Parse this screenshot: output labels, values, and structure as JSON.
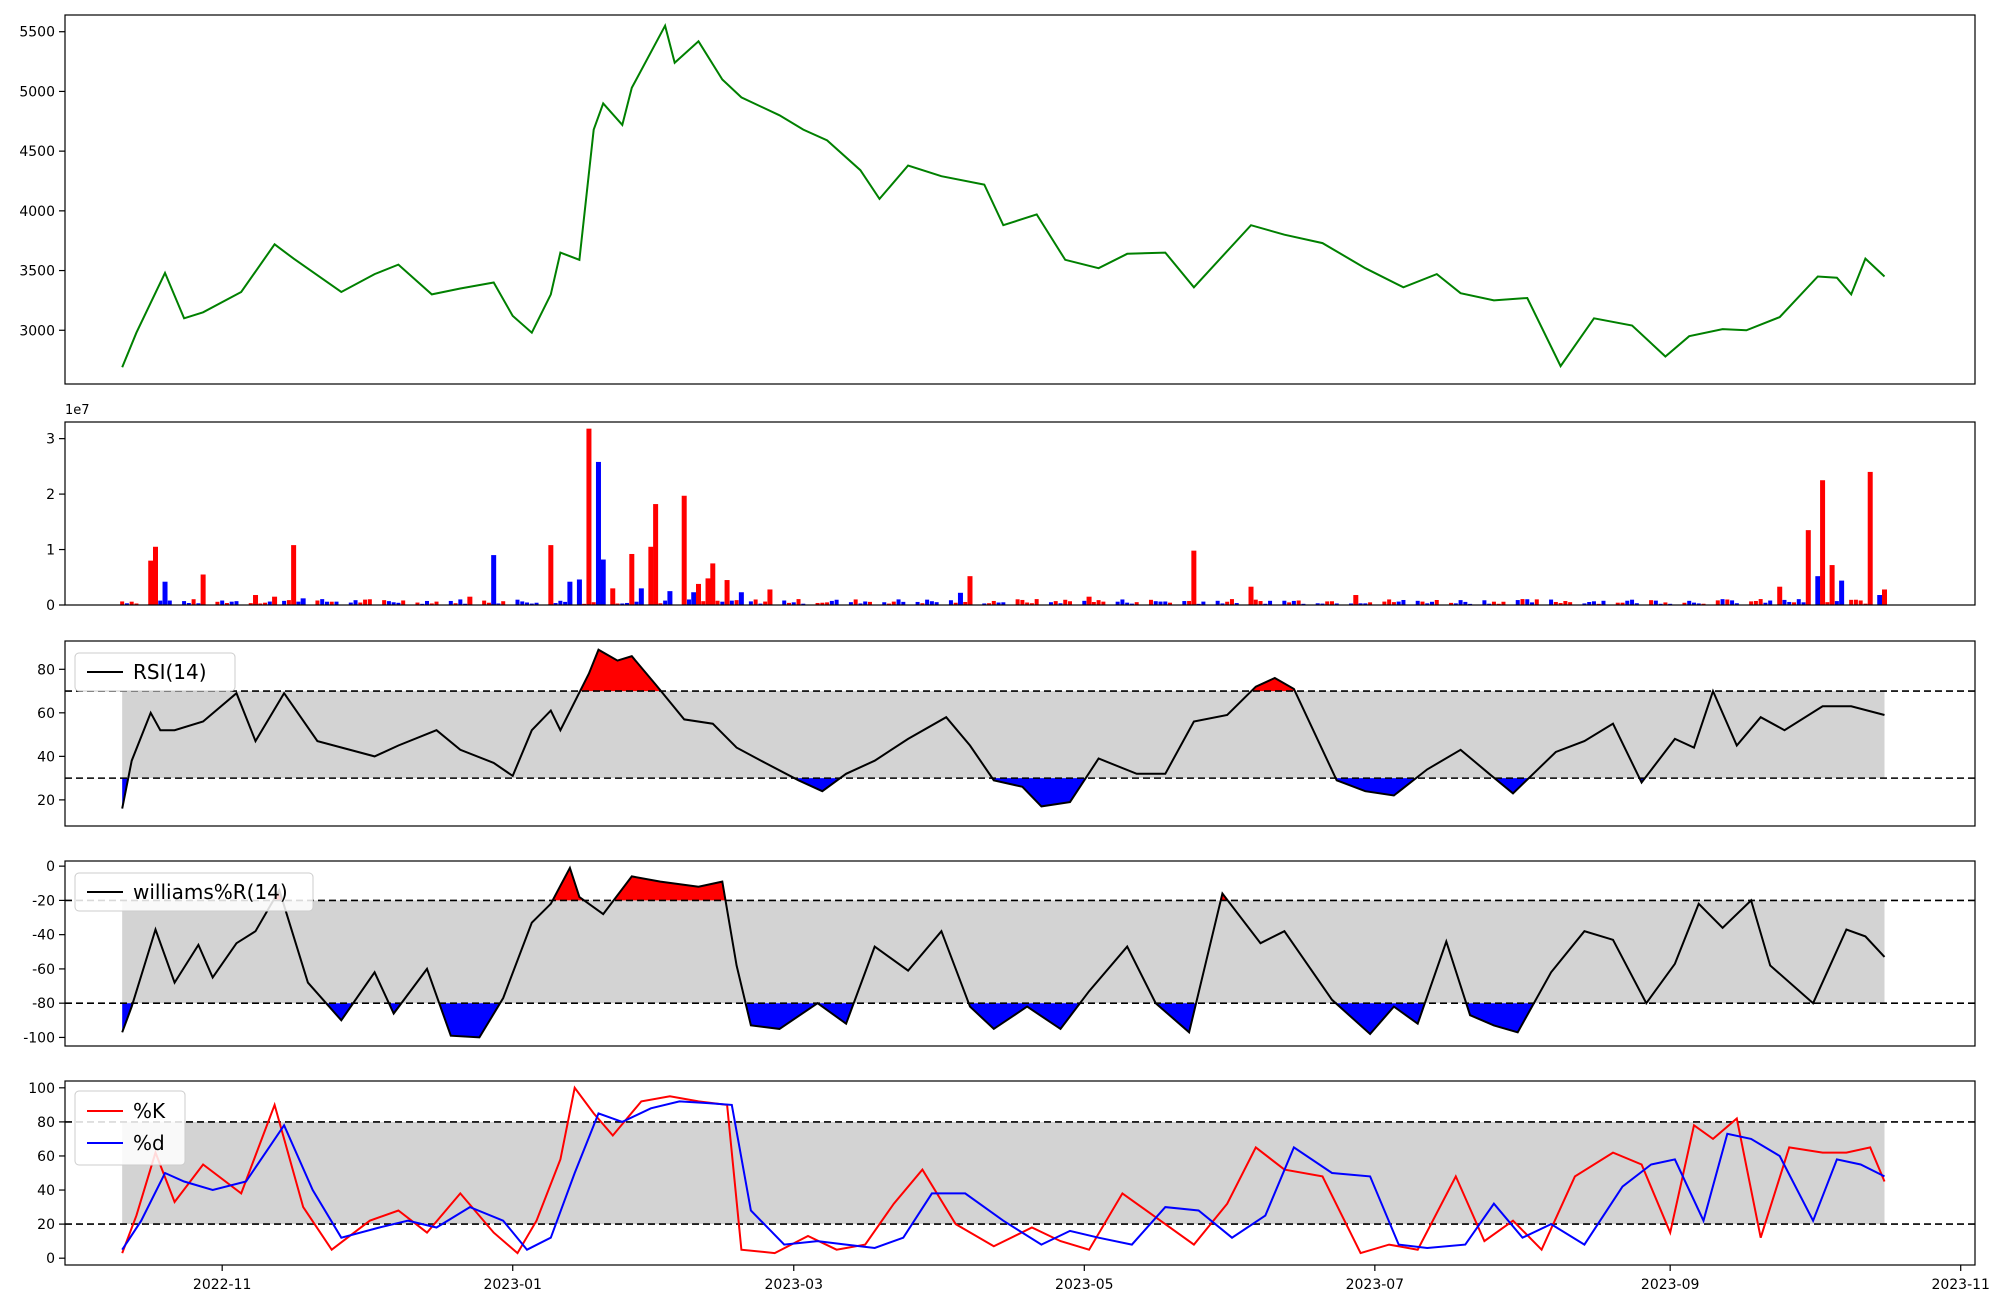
{
  "chart_data": [
    {
      "id": "price",
      "type": "line",
      "color": "#008000",
      "ylim": [
        2550,
        5640
      ],
      "yticks": [
        3000,
        3500,
        4000,
        4500,
        5000,
        5500
      ],
      "x": [
        "2022-10-11",
        "2022-10-14",
        "2022-10-20",
        "2022-10-24",
        "2022-10-28",
        "2022-11-05",
        "2022-11-12",
        "2022-11-16",
        "2022-11-26",
        "2022-12-03",
        "2022-12-08",
        "2022-12-15",
        "2022-12-21",
        "2022-12-28",
        "2023-01-01",
        "2023-01-05",
        "2023-01-09",
        "2023-01-11",
        "2023-01-15",
        "2023-01-18",
        "2023-01-20",
        "2023-01-24",
        "2023-01-26",
        "2023-02-02",
        "2023-02-04",
        "2023-02-09",
        "2023-02-14",
        "2023-02-18",
        "2023-02-26",
        "2023-03-03",
        "2023-03-08",
        "2023-03-15",
        "2023-03-19",
        "2023-03-25",
        "2023-04-01",
        "2023-04-10",
        "2023-04-14",
        "2023-04-21",
        "2023-04-27",
        "2023-05-04",
        "2023-05-10",
        "2023-05-18",
        "2023-05-24",
        "2023-06-05",
        "2023-06-12",
        "2023-06-20",
        "2023-06-29",
        "2023-07-07",
        "2023-07-14",
        "2023-07-19",
        "2023-07-26",
        "2023-08-02",
        "2023-08-09",
        "2023-08-16",
        "2023-08-24",
        "2023-08-31",
        "2023-09-05",
        "2023-09-12",
        "2023-09-17",
        "2023-09-24",
        "2023-10-02",
        "2023-10-06",
        "2023-10-09",
        "2023-10-12",
        "2023-10-16"
      ],
      "values": [
        2690,
        2980,
        3480,
        3100,
        3150,
        3320,
        3720,
        3600,
        3320,
        3470,
        3550,
        3300,
        3350,
        3400,
        3120,
        2980,
        3300,
        3650,
        3590,
        4680,
        4900,
        4720,
        5030,
        5550,
        5240,
        5420,
        5100,
        4950,
        4800,
        4680,
        4590,
        4340,
        4100,
        4380,
        4290,
        4220,
        3880,
        3970,
        3590,
        3520,
        3640,
        3650,
        3360,
        3880,
        3800,
        3730,
        3520,
        3360,
        3470,
        3310,
        3250,
        3270,
        2700,
        3100,
        3040,
        2780,
        2950,
        3010,
        3000,
        3110,
        3450,
        3440,
        3300,
        3600,
        3450
      ]
    },
    {
      "id": "volume",
      "type": "bar",
      "exponent_label": "1e7",
      "ylim": [
        0,
        33000000
      ],
      "yticks": [
        0,
        10000000,
        20000000,
        30000000
      ],
      "ytick_labels": [
        "0",
        "1",
        "2",
        "3"
      ],
      "colors": {
        "up": "#ff0000",
        "down": "#0000ff"
      },
      "bars": [
        {
          "x": "2022-10-17",
          "value": 8000000,
          "dir": "up"
        },
        {
          "x": "2022-10-18",
          "value": 10500000,
          "dir": "up"
        },
        {
          "x": "2022-10-20",
          "value": 4200000,
          "dir": "down"
        },
        {
          "x": "2022-10-28",
          "value": 5500000,
          "dir": "up"
        },
        {
          "x": "2022-11-08",
          "value": 1800000,
          "dir": "up"
        },
        {
          "x": "2022-11-12",
          "value": 1500000,
          "dir": "up"
        },
        {
          "x": "2022-11-16",
          "value": 10800000,
          "dir": "up"
        },
        {
          "x": "2022-11-18",
          "value": 1200000,
          "dir": "down"
        },
        {
          "x": "2022-12-23",
          "value": 1500000,
          "dir": "up"
        },
        {
          "x": "2022-12-28",
          "value": 9000000,
          "dir": "down"
        },
        {
          "x": "2023-01-09",
          "value": 10800000,
          "dir": "up"
        },
        {
          "x": "2023-01-13",
          "value": 4200000,
          "dir": "down"
        },
        {
          "x": "2023-01-15",
          "value": 4600000,
          "dir": "down"
        },
        {
          "x": "2023-01-17",
          "value": 31800000,
          "dir": "up"
        },
        {
          "x": "2023-01-19",
          "value": 25800000,
          "dir": "down"
        },
        {
          "x": "2023-01-20",
          "value": 8200000,
          "dir": "down"
        },
        {
          "x": "2023-01-22",
          "value": 3000000,
          "dir": "up"
        },
        {
          "x": "2023-01-26",
          "value": 9200000,
          "dir": "up"
        },
        {
          "x": "2023-01-28",
          "value": 3000000,
          "dir": "down"
        },
        {
          "x": "2023-01-30",
          "value": 10500000,
          "dir": "up"
        },
        {
          "x": "2023-01-31",
          "value": 18200000,
          "dir": "up"
        },
        {
          "x": "2023-02-03",
          "value": 2500000,
          "dir": "down"
        },
        {
          "x": "2023-02-06",
          "value": 19700000,
          "dir": "up"
        },
        {
          "x": "2023-02-08",
          "value": 2300000,
          "dir": "down"
        },
        {
          "x": "2023-02-09",
          "value": 3800000,
          "dir": "up"
        },
        {
          "x": "2023-02-11",
          "value": 4800000,
          "dir": "up"
        },
        {
          "x": "2023-02-12",
          "value": 7500000,
          "dir": "up"
        },
        {
          "x": "2023-02-15",
          "value": 4500000,
          "dir": "up"
        },
        {
          "x": "2023-02-18",
          "value": 2300000,
          "dir": "down"
        },
        {
          "x": "2023-02-24",
          "value": 2800000,
          "dir": "up"
        },
        {
          "x": "2023-04-05",
          "value": 2200000,
          "dir": "down"
        },
        {
          "x": "2023-04-07",
          "value": 5200000,
          "dir": "up"
        },
        {
          "x": "2023-05-02",
          "value": 1500000,
          "dir": "up"
        },
        {
          "x": "2023-05-24",
          "value": 9800000,
          "dir": "up"
        },
        {
          "x": "2023-06-05",
          "value": 3300000,
          "dir": "up"
        },
        {
          "x": "2023-06-27",
          "value": 1800000,
          "dir": "up"
        },
        {
          "x": "2023-09-24",
          "value": 3300000,
          "dir": "up"
        },
        {
          "x": "2023-09-30",
          "value": 13500000,
          "dir": "up"
        },
        {
          "x": "2023-10-02",
          "value": 5200000,
          "dir": "down"
        },
        {
          "x": "2023-10-03",
          "value": 22500000,
          "dir": "up"
        },
        {
          "x": "2023-10-05",
          "value": 7200000,
          "dir": "up"
        },
        {
          "x": "2023-10-07",
          "value": 4400000,
          "dir": "down"
        },
        {
          "x": "2023-10-13",
          "value": 24000000,
          "dir": "up"
        },
        {
          "x": "2023-10-15",
          "value": 1800000,
          "dir": "down"
        },
        {
          "x": "2023-10-16",
          "value": 2800000,
          "dir": "up"
        }
      ]
    },
    {
      "id": "rsi",
      "type": "area",
      "legend": [
        "RSI(14)"
      ],
      "legend_position": "upper-left",
      "line_color": "#000000",
      "band": [
        30,
        70
      ],
      "band_color": "#d3d3d3",
      "over_color": "#ff0000",
      "under_color": "#0000ff",
      "ylim": [
        8,
        93
      ],
      "yticks": [
        20,
        40,
        60,
        80
      ],
      "x": [
        "2022-10-11",
        "2022-10-13",
        "2022-10-17",
        "2022-10-19",
        "2022-10-22",
        "2022-10-28",
        "2022-11-04",
        "2022-11-08",
        "2022-11-14",
        "2022-11-21",
        "2022-12-03",
        "2022-12-08",
        "2022-12-16",
        "2022-12-21",
        "2022-12-28",
        "2023-01-01",
        "2023-01-05",
        "2023-01-09",
        "2023-01-11",
        "2023-01-17",
        "2023-01-19",
        "2023-01-23",
        "2023-01-26",
        "2023-01-31",
        "2023-02-06",
        "2023-02-12",
        "2023-02-17",
        "2023-02-23",
        "2023-03-02",
        "2023-03-07",
        "2023-03-12",
        "2023-03-18",
        "2023-03-25",
        "2023-04-02",
        "2023-04-07",
        "2023-04-12",
        "2023-04-18",
        "2023-04-22",
        "2023-04-28",
        "2023-05-04",
        "2023-05-12",
        "2023-05-18",
        "2023-05-24",
        "2023-05-31",
        "2023-06-06",
        "2023-06-10",
        "2023-06-14",
        "2023-06-23",
        "2023-06-29",
        "2023-07-05",
        "2023-07-12",
        "2023-07-19",
        "2023-07-25",
        "2023-07-30",
        "2023-08-08",
        "2023-08-14",
        "2023-08-20",
        "2023-08-26",
        "2023-09-02",
        "2023-09-06",
        "2023-09-10",
        "2023-09-15",
        "2023-09-20",
        "2023-09-25",
        "2023-10-03",
        "2023-10-09",
        "2023-10-16"
      ],
      "values": [
        16,
        38,
        60,
        52,
        52,
        56,
        69,
        47,
        69,
        47,
        40,
        45,
        52,
        43,
        37,
        31,
        52,
        61,
        52,
        78,
        89,
        84,
        86,
        73,
        57,
        55,
        44,
        37,
        29,
        24,
        32,
        38,
        48,
        58,
        45,
        29,
        26,
        17,
        19,
        39,
        32,
        32,
        56,
        59,
        72,
        76,
        71,
        29,
        24,
        22,
        34,
        43,
        32,
        23,
        42,
        47,
        55,
        28,
        48,
        44,
        70,
        45,
        58,
        52,
        63,
        63,
        59
      ]
    },
    {
      "id": "williams",
      "type": "area",
      "legend": [
        "williams%R(14)"
      ],
      "legend_position": "upper-left",
      "line_color": "#000000",
      "band": [
        -80,
        -20
      ],
      "band_color": "#d3d3d3",
      "over_color": "#ff0000",
      "under_color": "#0000ff",
      "ylim": [
        -105,
        3
      ],
      "yticks": [
        -100,
        -80,
        -60,
        -40,
        -20,
        0
      ],
      "x": [
        "2022-10-11",
        "2022-10-13",
        "2022-10-18",
        "2022-10-22",
        "2022-10-27",
        "2022-10-30",
        "2022-11-04",
        "2022-11-08",
        "2022-11-13",
        "2022-11-19",
        "2022-11-26",
        "2022-12-03",
        "2022-12-07",
        "2022-12-14",
        "2022-12-19",
        "2022-12-25",
        "2022-12-30",
        "2023-01-05",
        "2023-01-09",
        "2023-01-13",
        "2023-01-15",
        "2023-01-20",
        "2023-01-26",
        "2023-02-01",
        "2023-02-09",
        "2023-02-14",
        "2023-02-17",
        "2023-02-20",
        "2023-02-26",
        "2023-03-06",
        "2023-03-12",
        "2023-03-18",
        "2023-03-25",
        "2023-04-01",
        "2023-04-07",
        "2023-04-12",
        "2023-04-19",
        "2023-04-26",
        "2023-05-02",
        "2023-05-10",
        "2023-05-16",
        "2023-05-23",
        "2023-05-30",
        "2023-06-07",
        "2023-06-12",
        "2023-06-22",
        "2023-06-30",
        "2023-07-05",
        "2023-07-10",
        "2023-07-16",
        "2023-07-21",
        "2023-07-26",
        "2023-07-31",
        "2023-08-07",
        "2023-08-14",
        "2023-08-20",
        "2023-08-27",
        "2023-09-02",
        "2023-09-07",
        "2023-09-12",
        "2023-09-18",
        "2023-09-22",
        "2023-10-01",
        "2023-10-08",
        "2023-10-12",
        "2023-10-16"
      ],
      "values": [
        -97,
        -82,
        -37,
        -68,
        -46,
        -65,
        -45,
        -38,
        -14,
        -68,
        -90,
        -62,
        -86,
        -60,
        -99,
        -100,
        -77,
        -33,
        -22,
        -1,
        -18,
        -28,
        -6,
        -9,
        -12,
        -9,
        -58,
        -93,
        -95,
        -80,
        -92,
        -47,
        -61,
        -38,
        -82,
        -95,
        -82,
        -95,
        -73,
        -47,
        -80,
        -97,
        -16,
        -45,
        -38,
        -78,
        -98,
        -82,
        -92,
        -44,
        -87,
        -93,
        -97,
        -62,
        -38,
        -43,
        -80,
        -57,
        -22,
        -36,
        -20,
        -58,
        -80,
        -37,
        -41,
        -53
      ]
    },
    {
      "id": "stochastic",
      "type": "line",
      "legend": [
        "%K",
        "%d"
      ],
      "legend_position": "upper-left",
      "band": [
        20,
        80
      ],
      "band_color": "#d3d3d3",
      "ylim": [
        -4,
        104
      ],
      "yticks": [
        0,
        20,
        40,
        60,
        80,
        100
      ],
      "series": [
        {
          "name": "%K",
          "color": "#ff0000",
          "x": [
            "2022-10-11",
            "2022-10-14",
            "2022-10-18",
            "2022-10-22",
            "2022-10-28",
            "2022-11-05",
            "2022-11-12",
            "2022-11-18",
            "2022-11-24",
            "2022-12-02",
            "2022-12-08",
            "2022-12-14",
            "2022-12-21",
            "2022-12-28",
            "2023-01-02",
            "2023-01-06",
            "2023-01-11",
            "2023-01-14",
            "2023-01-18",
            "2023-01-22",
            "2023-01-28",
            "2023-02-03",
            "2023-02-09",
            "2023-02-15",
            "2023-02-18",
            "2023-02-25",
            "2023-03-04",
            "2023-03-10",
            "2023-03-16",
            "2023-03-22",
            "2023-03-28",
            "2023-04-04",
            "2023-04-12",
            "2023-04-20",
            "2023-04-26",
            "2023-05-02",
            "2023-05-09",
            "2023-05-17",
            "2023-05-24",
            "2023-05-31",
            "2023-06-06",
            "2023-06-12",
            "2023-06-20",
            "2023-06-28",
            "2023-07-04",
            "2023-07-10",
            "2023-07-18",
            "2023-07-24",
            "2023-07-30",
            "2023-08-05",
            "2023-08-12",
            "2023-08-20",
            "2023-08-26",
            "2023-09-01",
            "2023-09-06",
            "2023-09-10",
            "2023-09-15",
            "2023-09-20",
            "2023-09-26",
            "2023-10-03",
            "2023-10-08",
            "2023-10-13",
            "2023-10-16"
          ],
          "values": [
            3,
            25,
            62,
            33,
            55,
            38,
            90,
            30,
            5,
            22,
            28,
            15,
            38,
            15,
            3,
            22,
            58,
            100,
            85,
            72,
            92,
            95,
            92,
            90,
            5,
            3,
            13,
            5,
            8,
            32,
            52,
            20,
            7,
            18,
            10,
            5,
            38,
            22,
            8,
            32,
            65,
            52,
            48,
            3,
            8,
            5,
            48,
            10,
            22,
            5,
            48,
            62,
            55,
            15,
            78,
            70,
            82,
            12,
            65,
            62,
            62,
            65,
            45
          ]
        },
        {
          "name": "%d",
          "color": "#0000ff",
          "x": [
            "2022-10-11",
            "2022-10-15",
            "2022-10-20",
            "2022-10-24",
            "2022-10-30",
            "2022-11-06",
            "2022-11-14",
            "2022-11-20",
            "2022-11-26",
            "2022-12-04",
            "2022-12-10",
            "2022-12-16",
            "2022-12-23",
            "2022-12-30",
            "2023-01-04",
            "2023-01-09",
            "2023-01-14",
            "2023-01-19",
            "2023-01-24",
            "2023-01-30",
            "2023-02-05",
            "2023-02-11",
            "2023-02-16",
            "2023-02-20",
            "2023-02-27",
            "2023-03-06",
            "2023-03-12",
            "2023-03-18",
            "2023-03-24",
            "2023-03-30",
            "2023-04-06",
            "2023-04-14",
            "2023-04-22",
            "2023-04-28",
            "2023-05-04",
            "2023-05-11",
            "2023-05-18",
            "2023-05-25",
            "2023-06-01",
            "2023-06-08",
            "2023-06-14",
            "2023-06-22",
            "2023-06-30",
            "2023-07-06",
            "2023-07-12",
            "2023-07-20",
            "2023-07-26",
            "2023-08-01",
            "2023-08-07",
            "2023-08-14",
            "2023-08-22",
            "2023-08-28",
            "2023-09-02",
            "2023-09-08",
            "2023-09-13",
            "2023-09-18",
            "2023-09-24",
            "2023-10-01",
            "2023-10-06",
            "2023-10-11",
            "2023-10-16"
          ],
          "values": [
            5,
            22,
            50,
            45,
            40,
            45,
            78,
            40,
            12,
            18,
            22,
            18,
            30,
            22,
            5,
            12,
            50,
            85,
            80,
            88,
            92,
            91,
            90,
            28,
            8,
            10,
            8,
            6,
            12,
            38,
            38,
            22,
            8,
            16,
            12,
            8,
            30,
            28,
            12,
            25,
            65,
            50,
            48,
            8,
            6,
            8,
            32,
            12,
            20,
            8,
            42,
            55,
            58,
            22,
            73,
            70,
            60,
            22,
            58,
            55,
            48
          ]
        }
      ]
    }
  ],
  "x_axis": {
    "xlim": [
      "2022-09-29",
      "2023-11-04"
    ],
    "ticks": [
      "2022-11-01",
      "2023-01-01",
      "2023-03-01",
      "2023-05-01",
      "2023-07-01",
      "2023-09-01",
      "2023-11-01"
    ],
    "tick_labels": [
      "2022-11",
      "2023-01",
      "2023-03",
      "2023-05",
      "2023-07",
      "2023-09",
      "2023-11"
    ]
  }
}
